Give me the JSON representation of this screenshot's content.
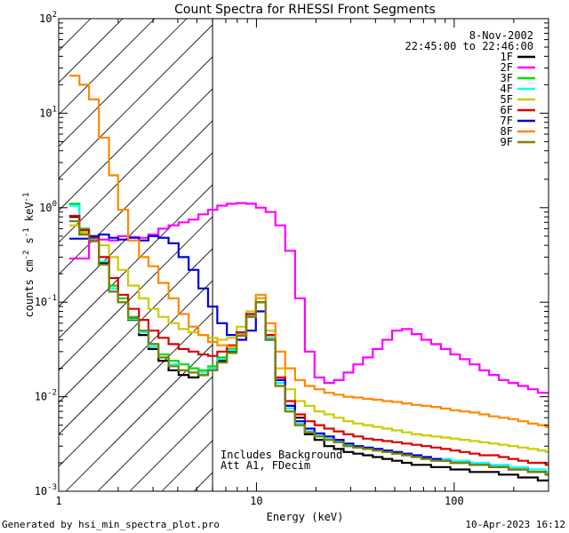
{
  "chart_data": {
    "type": "line",
    "title": "Count Spectra for RHESSI Front Segments",
    "xlabel": "Energy (keV)",
    "ylabel_parts": [
      "counts cm",
      "-2",
      " s",
      "-1",
      " keV",
      "-1"
    ],
    "xscale": "log",
    "yscale": "log",
    "xlim": [
      1,
      300
    ],
    "ylim": [
      0.001,
      100
    ],
    "x_tick_labels": [
      {
        "value": 1,
        "label": "1"
      },
      {
        "value": 10,
        "label": "10"
      },
      {
        "value": 100,
        "label": "100"
      }
    ],
    "y_tick_labels": [
      {
        "value": 0.001,
        "base": "10",
        "exp": "-3"
      },
      {
        "value": 0.01,
        "base": "10",
        "exp": "-2"
      },
      {
        "value": 0.1,
        "base": "10",
        "exp": "-1"
      },
      {
        "value": 1,
        "base": "10",
        "exp": "0"
      },
      {
        "value": 10,
        "base": "10",
        "exp": "1"
      },
      {
        "value": 100,
        "base": "10",
        "exp": "2"
      }
    ],
    "date": "8-Nov-2002",
    "time_range": "22:45:00 to 22:46:00",
    "hatched_region_kev": [
      1,
      6
    ],
    "annotations": [
      "Includes Background",
      "Att A1, FDecim"
    ],
    "series": [
      {
        "name": "1F",
        "color": "#000000",
        "x": [
          1.2,
          1.35,
          1.5,
          1.7,
          1.9,
          2.1,
          2.4,
          2.7,
          3.0,
          3.4,
          3.8,
          4.3,
          4.8,
          5.4,
          6.0,
          6.7,
          7.5,
          8.4,
          9.4,
          10.5,
          11.8,
          13.2,
          14.8,
          16.6,
          18.6,
          20.8,
          23.3,
          26.1,
          29.2,
          32.7,
          36.6,
          41.0,
          45.9,
          51.4,
          57.6,
          64.5,
          72.2,
          80.9,
          90.6,
          101,
          113,
          127,
          142,
          159,
          178,
          199,
          223,
          250,
          280,
          300
        ],
        "y": [
          0.8,
          0.52,
          0.45,
          0.26,
          0.13,
          0.1,
          0.065,
          0.045,
          0.032,
          0.024,
          0.019,
          0.017,
          0.016,
          0.017,
          0.019,
          0.024,
          0.03,
          0.045,
          0.07,
          0.11,
          0.045,
          0.015,
          0.008,
          0.006,
          0.004,
          0.0035,
          0.003,
          0.0028,
          0.0026,
          0.0025,
          0.0024,
          0.0023,
          0.0022,
          0.0021,
          0.002,
          0.0019,
          0.0019,
          0.0018,
          0.0018,
          0.0017,
          0.0017,
          0.0016,
          0.0016,
          0.0016,
          0.0015,
          0.0015,
          0.0014,
          0.0014,
          0.0013,
          0.0013
        ]
      },
      {
        "name": "2F",
        "color": "#ff00ff",
        "x": [
          1.2,
          1.35,
          1.5,
          1.7,
          1.9,
          2.1,
          2.4,
          2.7,
          3.0,
          3.4,
          3.8,
          4.3,
          4.8,
          5.4,
          6.0,
          6.7,
          7.5,
          8.4,
          9.4,
          10.5,
          11.8,
          13.2,
          14.8,
          16.6,
          18.6,
          20.8,
          23.3,
          26.1,
          29.2,
          32.7,
          36.6,
          41.0,
          45.9,
          51.4,
          57.6,
          64.5,
          72.2,
          80.9,
          90.6,
          101,
          113,
          127,
          142,
          159,
          178,
          199,
          223,
          250,
          280,
          300
        ],
        "y": [
          0.29,
          0.29,
          0.45,
          0.46,
          0.45,
          0.5,
          0.49,
          0.48,
          0.52,
          0.6,
          0.65,
          0.7,
          0.75,
          0.85,
          0.95,
          1.05,
          1.1,
          1.12,
          1.1,
          1.0,
          0.9,
          0.65,
          0.35,
          0.11,
          0.03,
          0.016,
          0.014,
          0.015,
          0.018,
          0.022,
          0.026,
          0.032,
          0.04,
          0.05,
          0.052,
          0.046,
          0.04,
          0.036,
          0.032,
          0.028,
          0.025,
          0.022,
          0.019,
          0.017,
          0.015,
          0.014,
          0.013,
          0.012,
          0.011,
          0.011
        ]
      },
      {
        "name": "3F",
        "color": "#00dd00",
        "x": [
          1.2,
          1.35,
          1.5,
          1.7,
          1.9,
          2.1,
          2.4,
          2.7,
          3.0,
          3.4,
          3.8,
          4.3,
          4.8,
          5.4,
          6.0,
          6.7,
          7.5,
          8.4,
          9.4,
          10.5,
          11.8,
          13.2,
          14.8,
          16.6,
          18.6,
          20.8,
          23.3,
          26.1,
          29.2,
          32.7,
          36.6,
          41.0,
          45.9,
          51.4,
          57.6,
          64.5,
          72.2,
          80.9,
          90.6,
          101,
          113,
          127,
          142,
          159,
          178,
          199,
          223,
          250,
          280,
          300
        ],
        "y": [
          1.1,
          0.6,
          0.5,
          0.3,
          0.15,
          0.11,
          0.07,
          0.05,
          0.036,
          0.028,
          0.024,
          0.022,
          0.02,
          0.019,
          0.021,
          0.026,
          0.032,
          0.048,
          0.075,
          0.1,
          0.04,
          0.013,
          0.007,
          0.005,
          0.0042,
          0.0038,
          0.0035,
          0.0033,
          0.003,
          0.0029,
          0.0028,
          0.0027,
          0.0026,
          0.0025,
          0.0024,
          0.0023,
          0.0022,
          0.0021,
          0.0021,
          0.002,
          0.002,
          0.0019,
          0.0019,
          0.0018,
          0.0018,
          0.0017,
          0.0017,
          0.0016,
          0.0016,
          0.0015
        ]
      },
      {
        "name": "4F",
        "color": "#00ffff",
        "x": [
          1.2,
          1.35,
          1.5,
          1.7,
          1.9,
          2.1,
          2.4,
          2.7,
          3.0,
          3.4,
          3.8,
          4.3,
          4.8,
          5.4,
          6.0,
          6.7,
          7.5,
          8.4,
          9.4,
          10.5,
          11.8,
          13.2,
          14.8,
          16.6,
          18.6,
          20.8,
          23.3,
          26.1,
          29.2,
          32.7,
          36.6,
          41.0,
          45.9,
          51.4,
          57.6,
          64.5,
          72.2,
          80.9,
          90.6,
          101,
          113,
          127,
          142,
          159,
          178,
          199,
          223,
          250,
          280,
          300
        ],
        "y": [
          1.05,
          0.58,
          0.47,
          0.27,
          0.14,
          0.1,
          0.066,
          0.048,
          0.034,
          0.026,
          0.022,
          0.019,
          0.018,
          0.018,
          0.02,
          0.025,
          0.031,
          0.046,
          0.072,
          0.1,
          0.042,
          0.014,
          0.0075,
          0.0052,
          0.0043,
          0.0039,
          0.0036,
          0.0034,
          0.0031,
          0.003,
          0.0029,
          0.0028,
          0.0027,
          0.0026,
          0.0025,
          0.0024,
          0.0023,
          0.0022,
          0.0022,
          0.0021,
          0.0021,
          0.002,
          0.002,
          0.0019,
          0.0019,
          0.0018,
          0.0018,
          0.0017,
          0.0017,
          0.0016
        ]
      },
      {
        "name": "5F",
        "color": "#cccc00",
        "x": [
          1.2,
          1.35,
          1.5,
          1.7,
          1.9,
          2.1,
          2.4,
          2.7,
          3.0,
          3.4,
          3.8,
          4.3,
          4.8,
          5.4,
          6.0,
          6.7,
          7.5,
          8.4,
          9.4,
          10.5,
          11.8,
          13.2,
          14.8,
          16.6,
          18.6,
          20.8,
          23.3,
          26.1,
          29.2,
          32.7,
          36.6,
          41.0,
          45.9,
          51.4,
          57.6,
          64.5,
          72.2,
          80.9,
          90.6,
          101,
          113,
          127,
          142,
          159,
          178,
          199,
          223,
          250,
          280,
          300
        ],
        "y": [
          0.65,
          0.55,
          0.5,
          0.4,
          0.3,
          0.22,
          0.15,
          0.11,
          0.085,
          0.07,
          0.06,
          0.052,
          0.048,
          0.045,
          0.042,
          0.04,
          0.042,
          0.055,
          0.08,
          0.11,
          0.05,
          0.02,
          0.012,
          0.009,
          0.008,
          0.007,
          0.0065,
          0.006,
          0.0055,
          0.0052,
          0.005,
          0.0048,
          0.0046,
          0.0044,
          0.0042,
          0.004,
          0.0039,
          0.0038,
          0.0037,
          0.0036,
          0.0035,
          0.0034,
          0.0033,
          0.0032,
          0.0031,
          0.003,
          0.0029,
          0.0028,
          0.0027,
          0.0026
        ]
      },
      {
        "name": "6F",
        "color": "#dd0000",
        "x": [
          1.2,
          1.35,
          1.5,
          1.7,
          1.9,
          2.1,
          2.4,
          2.7,
          3.0,
          3.4,
          3.8,
          4.3,
          4.8,
          5.4,
          6.0,
          6.7,
          7.5,
          8.4,
          9.4,
          10.5,
          11.8,
          13.2,
          14.8,
          16.6,
          18.6,
          20.8,
          23.3,
          26.1,
          29.2,
          32.7,
          36.6,
          41.0,
          45.9,
          51.4,
          57.6,
          64.5,
          72.2,
          80.9,
          90.6,
          101,
          113,
          127,
          142,
          159,
          178,
          199,
          223,
          250,
          280,
          300
        ],
        "y": [
          0.82,
          0.58,
          0.48,
          0.3,
          0.18,
          0.12,
          0.085,
          0.065,
          0.05,
          0.042,
          0.036,
          0.032,
          0.03,
          0.028,
          0.027,
          0.03,
          0.035,
          0.048,
          0.075,
          0.1,
          0.045,
          0.016,
          0.009,
          0.0065,
          0.0055,
          0.005,
          0.0046,
          0.0043,
          0.004,
          0.0038,
          0.0036,
          0.0035,
          0.0034,
          0.0033,
          0.0032,
          0.0031,
          0.003,
          0.0029,
          0.0028,
          0.0027,
          0.0026,
          0.0025,
          0.0024,
          0.0024,
          0.0023,
          0.0022,
          0.0021,
          0.002,
          0.002,
          0.0019
        ]
      },
      {
        "name": "7F",
        "color": "#0000dd",
        "x": [
          1.2,
          1.35,
          1.5,
          1.7,
          1.9,
          2.1,
          2.4,
          2.7,
          3.0,
          3.4,
          3.8,
          4.3,
          4.8,
          5.4,
          6.0,
          6.7,
          7.5,
          8.4,
          9.4,
          10.5,
          11.8,
          13.2,
          14.8,
          16.6,
          18.6,
          20.8,
          23.3,
          26.1,
          29.2,
          32.7,
          36.6,
          41.0,
          45.9,
          51.4,
          57.6,
          64.5,
          72.2,
          80.9,
          90.6,
          101,
          113,
          127,
          142,
          159,
          178,
          199,
          223,
          250,
          280,
          300
        ],
        "y": [
          0.47,
          0.47,
          0.5,
          0.52,
          0.48,
          0.46,
          0.48,
          0.45,
          0.5,
          0.48,
          0.42,
          0.3,
          0.22,
          0.14,
          0.09,
          0.06,
          0.045,
          0.04,
          0.05,
          0.08,
          0.04,
          0.015,
          0.008,
          0.0055,
          0.0046,
          0.0041,
          0.0038,
          0.0035,
          0.0032,
          0.003,
          0.0029,
          0.0028,
          0.0027,
          0.0026,
          0.0025,
          0.0024,
          0.0023,
          0.0022,
          0.0021,
          0.002,
          0.002,
          0.0019,
          0.0019,
          0.0018,
          0.0018,
          0.0017,
          0.0017,
          0.0016,
          0.0016,
          0.0015
        ]
      },
      {
        "name": "8F",
        "color": "#ff8800",
        "x": [
          1.2,
          1.35,
          1.5,
          1.7,
          1.9,
          2.1,
          2.4,
          2.7,
          3.0,
          3.4,
          3.8,
          4.3,
          4.8,
          5.4,
          6.0,
          6.7,
          7.5,
          8.4,
          9.4,
          10.5,
          11.8,
          13.2,
          14.8,
          16.6,
          18.6,
          20.8,
          23.3,
          26.1,
          29.2,
          32.7,
          36.6,
          41.0,
          45.9,
          51.4,
          57.6,
          64.5,
          72.2,
          80.9,
          90.6,
          101,
          113,
          127,
          142,
          159,
          178,
          199,
          223,
          250,
          280,
          300
        ],
        "y": [
          25,
          20,
          14,
          5.5,
          2.2,
          0.95,
          0.45,
          0.3,
          0.24,
          0.16,
          0.11,
          0.075,
          0.055,
          0.045,
          0.038,
          0.035,
          0.034,
          0.045,
          0.07,
          0.12,
          0.06,
          0.03,
          0.02,
          0.015,
          0.013,
          0.012,
          0.011,
          0.0105,
          0.01,
          0.0098,
          0.0095,
          0.0093,
          0.009,
          0.0088,
          0.0085,
          0.0082,
          0.008,
          0.0078,
          0.0075,
          0.0072,
          0.007,
          0.0068,
          0.0065,
          0.0062,
          0.006,
          0.0058,
          0.0055,
          0.0052,
          0.005,
          0.0048
        ]
      },
      {
        "name": "9F",
        "color": "#808000",
        "x": [
          1.2,
          1.35,
          1.5,
          1.7,
          1.9,
          2.1,
          2.4,
          2.7,
          3.0,
          3.4,
          3.8,
          4.3,
          4.8,
          5.4,
          6.0,
          6.7,
          7.5,
          8.4,
          9.4,
          10.5,
          11.8,
          13.2,
          14.8,
          16.6,
          18.6,
          20.8,
          23.3,
          26.1,
          29.2,
          32.7,
          36.6,
          41.0,
          45.9,
          51.4,
          57.6,
          64.5,
          72.2,
          80.9,
          90.6,
          101,
          113,
          127,
          142,
          159,
          178,
          199,
          223,
          250,
          280,
          300
        ],
        "y": [
          0.72,
          0.52,
          0.44,
          0.25,
          0.13,
          0.1,
          0.068,
          0.05,
          0.036,
          0.026,
          0.021,
          0.019,
          0.018,
          0.017,
          0.019,
          0.023,
          0.029,
          0.044,
          0.07,
          0.1,
          0.04,
          0.013,
          0.007,
          0.005,
          0.0042,
          0.0038,
          0.0035,
          0.0033,
          0.003,
          0.0029,
          0.0028,
          0.0027,
          0.0026,
          0.0025,
          0.0024,
          0.0023,
          0.0022,
          0.0021,
          0.0021,
          0.002,
          0.002,
          0.0019,
          0.0019,
          0.0018,
          0.0018,
          0.0017,
          0.0017,
          0.0016,
          0.0016,
          0.0015
        ]
      }
    ]
  },
  "footer": {
    "left": "Generated by hsi_min_spectra_plot.pro",
    "right": "10-Apr-2023 16:12"
  }
}
